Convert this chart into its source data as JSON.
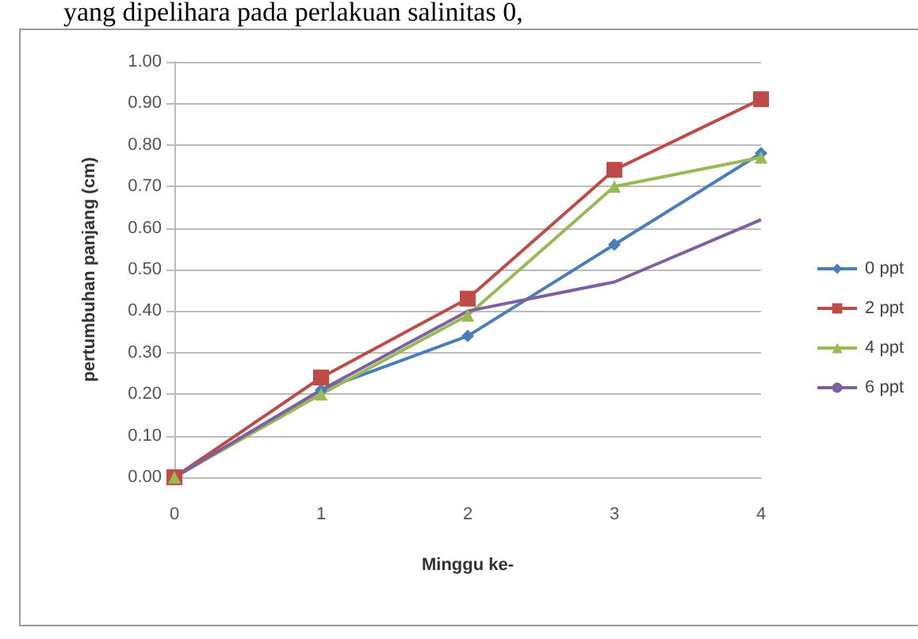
{
  "chart_data": {
    "type": "line",
    "xlabel": "Minggu ke-",
    "ylabel": "pertumbuhan panjang (cm)",
    "annotations": [
      "yang dipelihara pada perlakuan salinitas 0,"
    ],
    "categories": [
      "0",
      "1",
      "2",
      "3",
      "4"
    ],
    "series": [
      {
        "name": "0 ppt",
        "color": "#4a7ebb",
        "marker": "diamond",
        "values": [
          0,
          0.21,
          0.34,
          0.56,
          0.78
        ]
      },
      {
        "name": "2 ppt",
        "color": "#be4b48",
        "marker": "square",
        "values": [
          0,
          0.24,
          0.43,
          0.74,
          0.91
        ]
      },
      {
        "name": "4 ppt",
        "color": "#98b954",
        "marker": "triangle",
        "values": [
          0,
          0.2,
          0.39,
          0.7,
          0.77
        ]
      },
      {
        "name": "6 ppt",
        "color": "#7d60a0",
        "marker": "none",
        "values": [
          0,
          0.21,
          0.4,
          0.47,
          0.62
        ]
      }
    ],
    "ylim": [
      0,
      1
    ],
    "yticks": [
      {
        "value": 0,
        "label": "0.00"
      },
      {
        "value": 0.1,
        "label": "0.10"
      },
      {
        "value": 0.2,
        "label": "0.20"
      },
      {
        "value": 0.3,
        "label": "0.30"
      },
      {
        "value": 0.4,
        "label": "0.40"
      },
      {
        "value": 0.5,
        "label": "0.50"
      },
      {
        "value": 0.6,
        "label": "0.60"
      },
      {
        "value": 0.7,
        "label": "0.70"
      },
      {
        "value": 0.8,
        "label": "0.80"
      },
      {
        "value": 0.9,
        "label": "0.90"
      },
      {
        "value": 1,
        "label": "1.00"
      }
    ],
    "grid": "y",
    "legend": "right"
  }
}
